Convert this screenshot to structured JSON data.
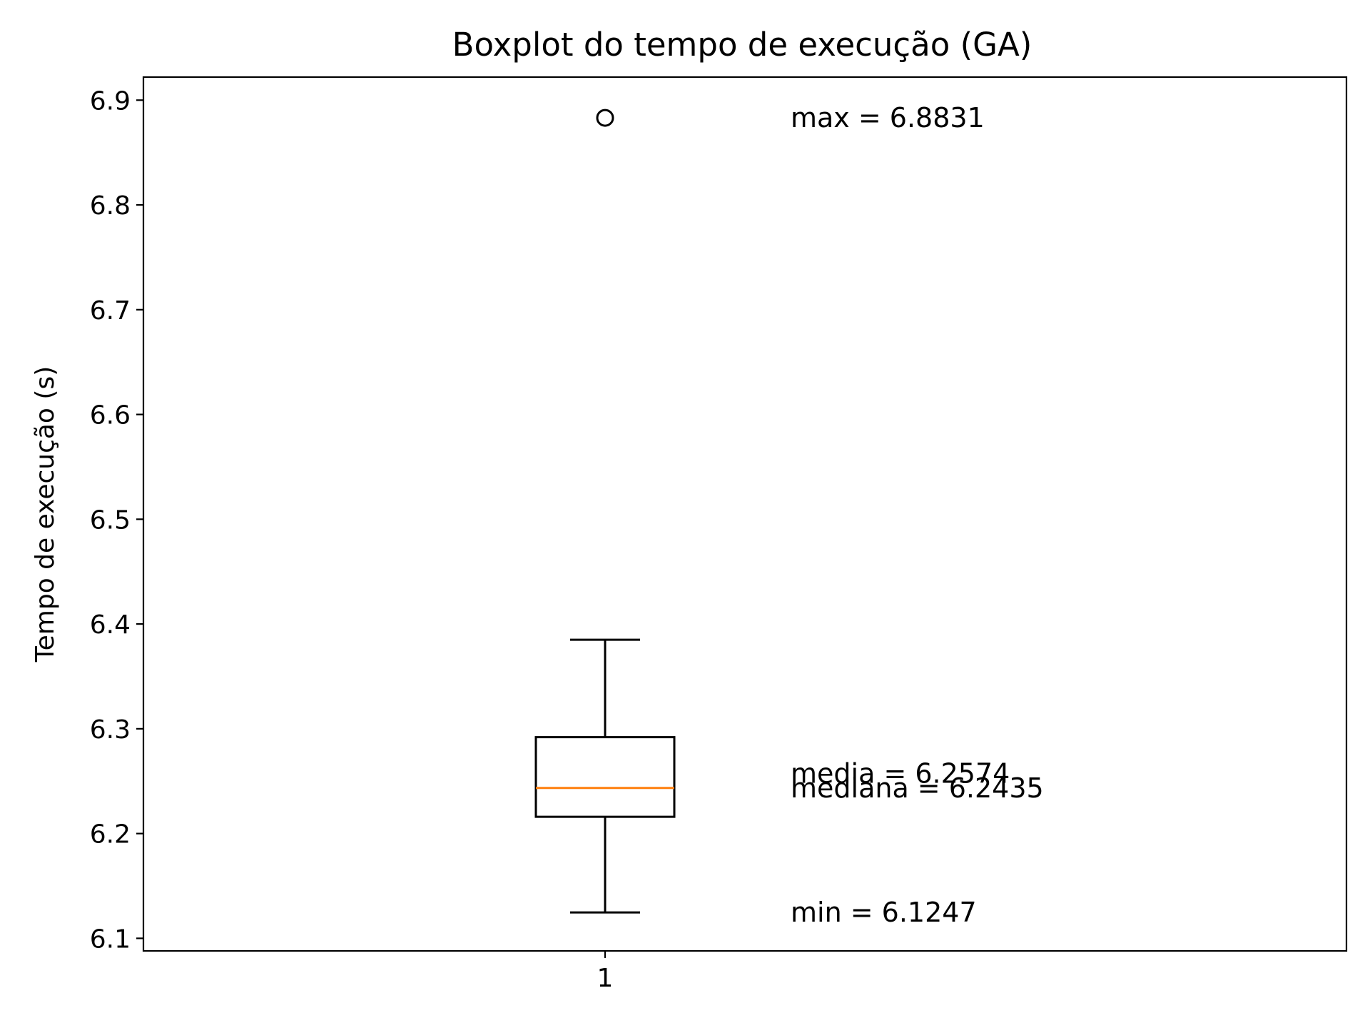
{
  "chart_data": {
    "type": "box",
    "title": "Boxplot do tempo de execução (GA)",
    "xlabel": "",
    "ylabel": "Tempo de execução (s)",
    "ylim": [
      6.088,
      6.922
    ],
    "yticks": [
      "6.1",
      "6.2",
      "6.3",
      "6.4",
      "6.5",
      "6.6",
      "6.7",
      "6.8",
      "6.9"
    ],
    "yticks_values": [
      6.1,
      6.2,
      6.3,
      6.4,
      6.5,
      6.6,
      6.7,
      6.8,
      6.9
    ],
    "categories": [
      "1"
    ],
    "boxes": [
      {
        "category": "1",
        "whisker_low": 6.1247,
        "q1": 6.216,
        "median": 6.2435,
        "q3": 6.292,
        "whisker_high": 6.385,
        "outliers": [
          6.8831
        ]
      }
    ],
    "annotations": [
      {
        "text": "max = 6.8831",
        "y": 6.8831
      },
      {
        "text": "media = 6.2574",
        "y": 6.2574
      },
      {
        "text": "mediana = 6.2435",
        "y": 6.2435
      },
      {
        "text": "min = 6.1247",
        "y": 6.1247
      }
    ],
    "grid": false,
    "colors": {
      "box": "#000000",
      "median": "#ff7f0e",
      "outlier": "#000000"
    }
  }
}
